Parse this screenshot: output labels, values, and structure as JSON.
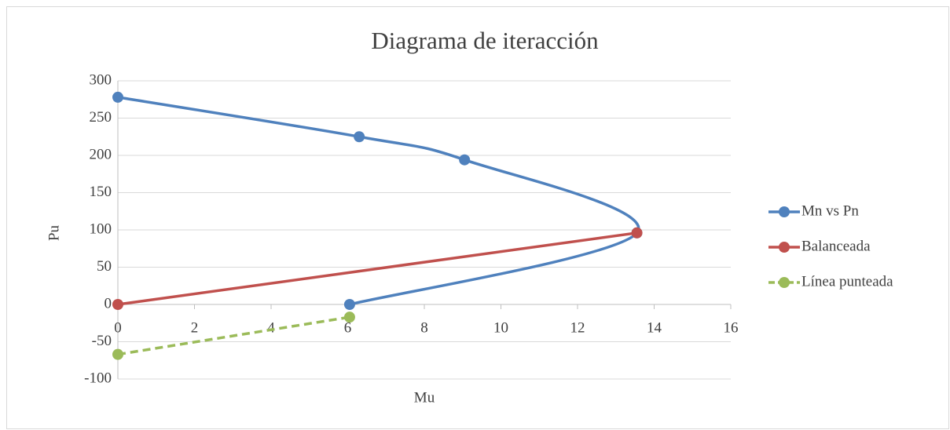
{
  "chart_data": {
    "type": "scatter",
    "title": "Diagrama de iteracción",
    "xlabel": "Mu",
    "ylabel": "Pu",
    "xlim": [
      0,
      16
    ],
    "xticks": [
      0,
      2,
      4,
      6,
      8,
      10,
      12,
      14,
      16
    ],
    "ylim": [
      -100,
      300
    ],
    "yticks": [
      -100,
      -50,
      0,
      50,
      100,
      150,
      200,
      250,
      300
    ],
    "grid": true,
    "legend": "right",
    "series": [
      {
        "name": "Mn vs Pn",
        "color": "#4f81bd",
        "smooth": true,
        "dash": false,
        "x": [
          0,
          6.3,
          9.05,
          13.55,
          6.05
        ],
        "values": [
          278,
          225,
          194,
          96,
          0
        ]
      },
      {
        "name": "Balanceada",
        "color": "#c0504d",
        "smooth": false,
        "dash": false,
        "x": [
          0,
          13.55
        ],
        "values": [
          0,
          96
        ]
      },
      {
        "name": "Línea punteada",
        "color": "#9bbb59",
        "smooth": false,
        "dash": true,
        "x": [
          0,
          6.05
        ],
        "values": [
          -67,
          -17
        ]
      }
    ]
  }
}
